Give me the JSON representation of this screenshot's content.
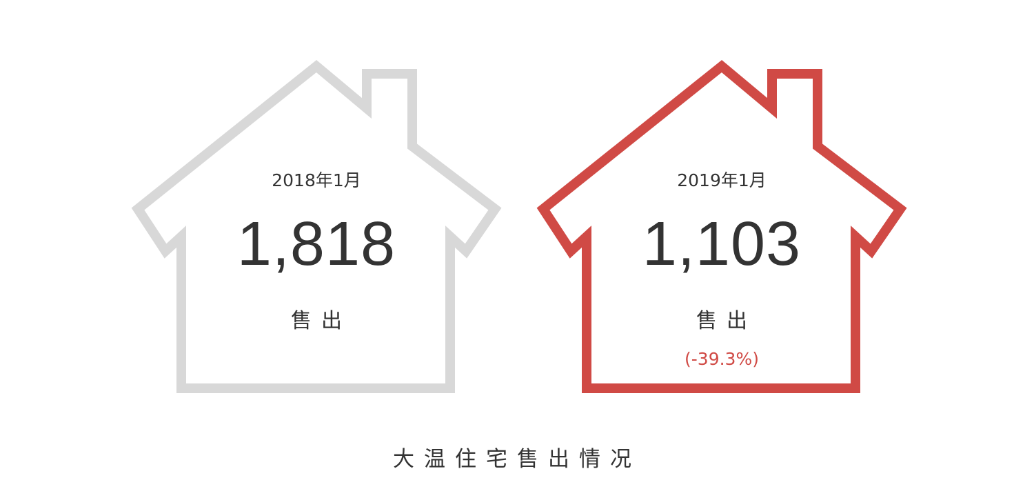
{
  "colors": {
    "previous": "#d8d8d8",
    "current": "#d04a45",
    "text": "#333333"
  },
  "houses": [
    {
      "period": "2018年1月",
      "value": "1,818",
      "label": "售出"
    },
    {
      "period": "2019年1月",
      "value": "1,103",
      "label": "售出",
      "change": "(-39.3%)"
    }
  ],
  "title": "大温住宅售出情况"
}
